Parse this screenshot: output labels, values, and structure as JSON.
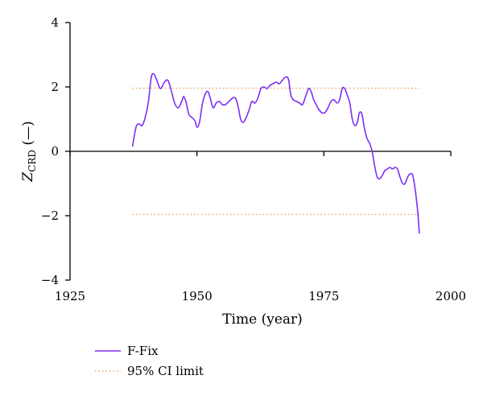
{
  "chart_data": {
    "type": "line",
    "title": "",
    "xlabel": "Time (year)",
    "ylabel": {
      "main": "Z",
      "sub": "CRD",
      "unit": " (—)"
    },
    "xlim": [
      1925,
      2000
    ],
    "ylim": [
      -4,
      4
    ],
    "xticks": [
      "1925",
      "1950",
      "1975",
      "2000"
    ],
    "yticks": [
      "4",
      "2",
      "0",
      "−2",
      "−4"
    ],
    "xtick_values": [
      1925,
      1950,
      1975,
      2000
    ],
    "ytick_values": [
      4,
      2,
      0,
      -2,
      -4
    ],
    "grid": false,
    "legend_position": "bottom-left",
    "series": [
      {
        "name": "F-Fix",
        "color": "#7b2ff7",
        "x": [
          1937.3,
          1938.0,
          1938.6,
          1939.2,
          1939.8,
          1940.4,
          1941.0,
          1941.5,
          1942.0,
          1942.8,
          1943.6,
          1944.3,
          1945.0,
          1945.6,
          1946.3,
          1947.0,
          1947.4,
          1947.9,
          1948.4,
          1949.0,
          1949.6,
          1950.0,
          1950.5,
          1951.1,
          1951.7,
          1952.2,
          1952.7,
          1953.2,
          1953.8,
          1954.4,
          1955.0,
          1955.6,
          1956.3,
          1957.0,
          1957.6,
          1958.1,
          1958.6,
          1959.1,
          1959.7,
          1960.3,
          1960.8,
          1961.4,
          1962.0,
          1962.6,
          1963.2,
          1963.8,
          1964.4,
          1965.0,
          1965.6,
          1966.2,
          1966.8,
          1967.4,
          1968.0,
          1968.5,
          1969.0,
          1969.6,
          1970.2,
          1970.8,
          1971.4,
          1972.0,
          1972.5,
          1973.0,
          1973.5,
          1974.0,
          1974.6,
          1975.2,
          1975.8,
          1976.4,
          1977.0,
          1977.6,
          1978.1,
          1978.6,
          1979.1,
          1979.6,
          1980.1,
          1980.6,
          1981.1,
          1981.6,
          1982.0,
          1982.5,
          1983.0,
          1983.5,
          1984.0,
          1984.5,
          1985.0,
          1985.5,
          1986.0,
          1986.5,
          1987.0,
          1987.5,
          1988.0,
          1988.5,
          1989.0,
          1989.5,
          1990.0,
          1990.5,
          1991.0,
          1991.5,
          1992.0,
          1992.5,
          1993.0,
          1993.5,
          1993.8
        ],
        "y": [
          0.15,
          0.75,
          0.85,
          0.8,
          1.05,
          1.5,
          2.3,
          2.4,
          2.25,
          1.95,
          2.15,
          2.2,
          1.85,
          1.5,
          1.35,
          1.55,
          1.7,
          1.5,
          1.15,
          1.05,
          0.95,
          0.75,
          0.9,
          1.5,
          1.8,
          1.85,
          1.6,
          1.35,
          1.5,
          1.55,
          1.45,
          1.45,
          1.55,
          1.65,
          1.65,
          1.4,
          1.0,
          0.9,
          1.05,
          1.3,
          1.55,
          1.5,
          1.65,
          1.95,
          2.0,
          1.95,
          2.05,
          2.1,
          2.15,
          2.1,
          2.2,
          2.3,
          2.25,
          1.75,
          1.6,
          1.55,
          1.5,
          1.45,
          1.7,
          1.95,
          1.85,
          1.6,
          1.45,
          1.3,
          1.2,
          1.2,
          1.35,
          1.55,
          1.6,
          1.5,
          1.6,
          1.95,
          1.95,
          1.75,
          1.5,
          1.0,
          0.8,
          0.9,
          1.2,
          1.15,
          0.7,
          0.4,
          0.25,
          0.0,
          -0.45,
          -0.8,
          -0.85,
          -0.75,
          -0.6,
          -0.55,
          -0.5,
          -0.55,
          -0.5,
          -0.55,
          -0.8,
          -1.0,
          -1.0,
          -0.8,
          -0.7,
          -0.75,
          -1.2,
          -1.9,
          -2.55
        ]
      },
      {
        "name": "95% CI limit",
        "color": "#e8a35a",
        "style": "dotted",
        "x": [
          1937.3,
          1993.8
        ],
        "y_upper": 1.96,
        "y_lower": -1.96
      }
    ]
  }
}
